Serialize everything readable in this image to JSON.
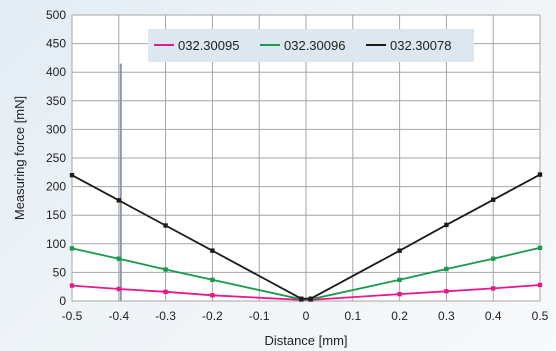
{
  "chart_data": {
    "type": "line",
    "title": "",
    "xlabel": "Distance [mm]",
    "ylabel": "Measuring force [mN]",
    "xlim": [
      -0.5,
      0.5
    ],
    "ylim": [
      0,
      500
    ],
    "xticks": [
      "-0.5",
      "-0.4",
      "-0.3",
      "-0.2",
      "-0.1",
      "0",
      "0.1",
      "0.2",
      "0.3",
      "0.4",
      "0.5"
    ],
    "yticks": [
      "0",
      "50",
      "100",
      "150",
      "200",
      "250",
      "300",
      "350",
      "400",
      "450",
      "500"
    ],
    "grid": true,
    "legend_position": "top",
    "series": [
      {
        "name": "032.30095",
        "color": "#e8198b",
        "points": [
          {
            "x": -0.5,
            "y": 27
          },
          {
            "x": -0.4,
            "y": 21
          },
          {
            "x": -0.3,
            "y": 16
          },
          {
            "x": -0.2,
            "y": 10
          },
          {
            "x": -0.01,
            "y": 2
          },
          {
            "x": 0.01,
            "y": 2
          },
          {
            "x": 0.2,
            "y": 12
          },
          {
            "x": 0.3,
            "y": 17
          },
          {
            "x": 0.4,
            "y": 22
          },
          {
            "x": 0.5,
            "y": 28
          }
        ]
      },
      {
        "name": "032.30096",
        "color": "#1a9a4e",
        "points": [
          {
            "x": -0.5,
            "y": 92
          },
          {
            "x": -0.4,
            "y": 74
          },
          {
            "x": -0.3,
            "y": 55
          },
          {
            "x": -0.2,
            "y": 37
          },
          {
            "x": -0.01,
            "y": 3
          },
          {
            "x": 0.01,
            "y": 3
          },
          {
            "x": 0.2,
            "y": 37
          },
          {
            "x": 0.3,
            "y": 56
          },
          {
            "x": 0.4,
            "y": 74
          },
          {
            "x": 0.5,
            "y": 93
          }
        ]
      },
      {
        "name": "032.30078",
        "color": "#1c1c1c",
        "points": [
          {
            "x": -0.5,
            "y": 220
          },
          {
            "x": -0.4,
            "y": 176
          },
          {
            "x": -0.3,
            "y": 132
          },
          {
            "x": -0.2,
            "y": 88
          },
          {
            "x": -0.01,
            "y": 4
          },
          {
            "x": 0.01,
            "y": 4
          },
          {
            "x": 0.2,
            "y": 88
          },
          {
            "x": 0.3,
            "y": 133
          },
          {
            "x": 0.4,
            "y": 177
          },
          {
            "x": 0.5,
            "y": 221
          }
        ]
      }
    ],
    "colors": {
      "grid": "#a6a6a6",
      "plot_background": "#ffffff",
      "legend_background": "#dde7ef",
      "marker_line": "#8a98a8"
    }
  }
}
